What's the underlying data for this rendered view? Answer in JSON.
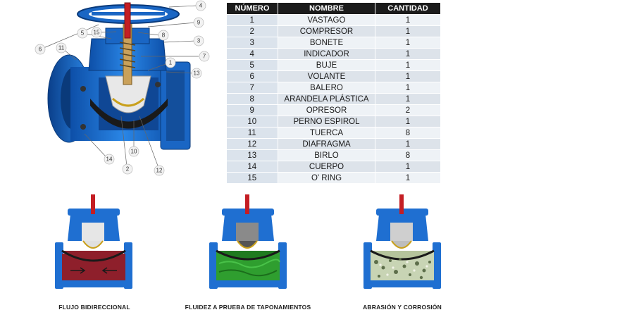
{
  "parts_table": {
    "headers": [
      "NÚMERO",
      "NOMBRE",
      "CANTIDAD"
    ],
    "rows": [
      {
        "numero": "1",
        "nombre": "VASTAGO",
        "cantidad": "1"
      },
      {
        "numero": "2",
        "nombre": "COMPRESOR",
        "cantidad": "1"
      },
      {
        "numero": "3",
        "nombre": "BONETE",
        "cantidad": "1"
      },
      {
        "numero": "4",
        "nombre": "INDICADOR",
        "cantidad": "1"
      },
      {
        "numero": "5",
        "nombre": "BUJE",
        "cantidad": "1"
      },
      {
        "numero": "6",
        "nombre": "VOLANTE",
        "cantidad": "1"
      },
      {
        "numero": "7",
        "nombre": "BALERO",
        "cantidad": "1"
      },
      {
        "numero": "8",
        "nombre": "ARANDELA PLÁSTICA",
        "cantidad": "1"
      },
      {
        "numero": "9",
        "nombre": "OPRESOR",
        "cantidad": "2"
      },
      {
        "numero": "10",
        "nombre": "PERNO ESPIROL",
        "cantidad": "1"
      },
      {
        "numero": "11",
        "nombre": "TUERCA",
        "cantidad": "8"
      },
      {
        "numero": "12",
        "nombre": "DIAFRAGMA",
        "cantidad": "1"
      },
      {
        "numero": "13",
        "nombre": "BIRLO",
        "cantidad": "8"
      },
      {
        "numero": "14",
        "nombre": "CUERPO",
        "cantidad": "1"
      },
      {
        "numero": "15",
        "nombre": "O' RING",
        "cantidad": "1"
      }
    ]
  },
  "callouts": [
    "1",
    "2",
    "3",
    "4",
    "5",
    "6",
    "7",
    "8",
    "9",
    "10",
    "11",
    "12",
    "13",
    "14",
    "15"
  ],
  "captions": {
    "bidirectional": "FLUJO BIDIRECCIONAL",
    "clog_proof": "FLUIDEZ A PRUEBA DE TAPONAMIENTOS",
    "abrasion": "ABRASIÓN Y CORROSIÓN"
  },
  "colors": {
    "body_blue": "#1f6fd1",
    "handle_red": "#c41e24",
    "diaphragm_black": "#1a1a1a",
    "flow_red": "#8e1f2b",
    "flow_green": "#2f9e2f",
    "table_header": "#1b1b1b"
  }
}
